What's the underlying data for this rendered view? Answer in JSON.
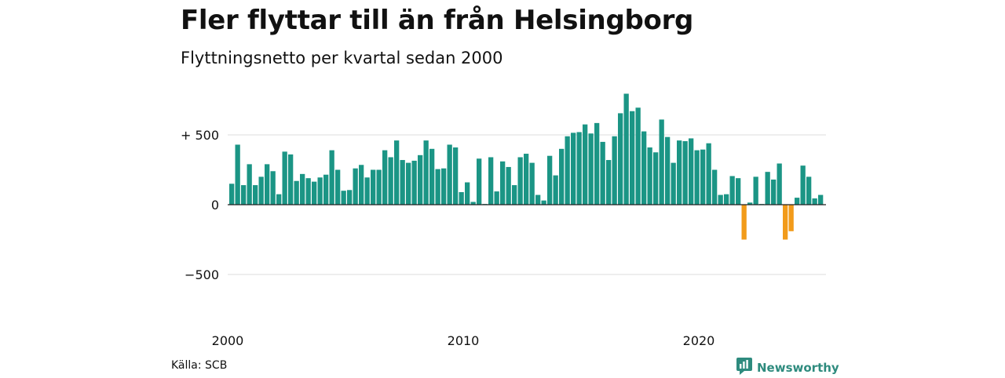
{
  "title": "Fler flyttar till än från Helsingborg",
  "subtitle": "Flyttningsnetto per kvartal sedan 2000",
  "source": "Källa: SCB",
  "brand": "Newsworthy",
  "colors": {
    "positive": "#1b9585",
    "negative": "#f29b1a",
    "grid": "#dddddd",
    "brand": "#2e8b7e"
  },
  "chart_data": {
    "type": "bar",
    "x_start": "2000 Q1",
    "x_ticks": [
      "2000",
      "2010",
      "2020"
    ],
    "y_ticks": [
      500,
      0,
      -500
    ],
    "y_tick_labels": [
      "+ 500",
      "0",
      "−500"
    ],
    "ylim": [
      -700,
      800
    ],
    "grid": true,
    "values": [
      150,
      430,
      140,
      290,
      140,
      200,
      290,
      240,
      75,
      380,
      360,
      170,
      220,
      190,
      165,
      195,
      215,
      390,
      250,
      100,
      105,
      260,
      285,
      195,
      250,
      250,
      390,
      340,
      460,
      320,
      300,
      315,
      355,
      460,
      400,
      255,
      260,
      430,
      410,
      90,
      160,
      20,
      330,
      5,
      340,
      95,
      310,
      270,
      140,
      340,
      365,
      300,
      70,
      30,
      350,
      210,
      400,
      490,
      515,
      520,
      575,
      510,
      585,
      450,
      320,
      490,
      655,
      795,
      670,
      695,
      525,
      410,
      375,
      610,
      485,
      300,
      460,
      455,
      475,
      390,
      395,
      440,
      250,
      70,
      75,
      205,
      190,
      -250,
      15,
      200,
      5,
      235,
      180,
      295,
      -250,
      -190,
      50,
      280,
      200,
      45,
      70
    ]
  }
}
